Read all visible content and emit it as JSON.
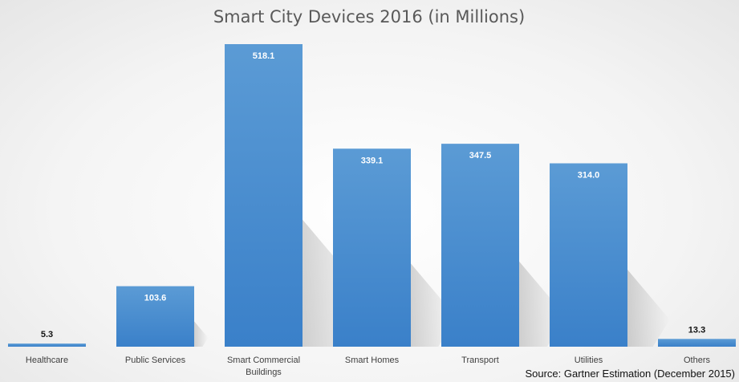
{
  "chart_data": {
    "type": "bar",
    "title": "Smart City Devices 2016 (in Millions)",
    "categories": [
      "Healthcare",
      "Public Services",
      "Smart Commercial Buildings",
      "Smart Homes",
      "Transport",
      "Utilities",
      "Others"
    ],
    "category_lines": [
      [
        "Healthcare"
      ],
      [
        "Public Services"
      ],
      [
        "Smart Commercial",
        "Buildings"
      ],
      [
        "Smart Homes"
      ],
      [
        "Transport"
      ],
      [
        "Utilities"
      ],
      [
        "Others"
      ]
    ],
    "values": [
      5.3,
      103.6,
      518.1,
      339.1,
      347.5,
      314.0,
      13.3
    ],
    "value_labels": [
      "5.3",
      "103.6",
      "518.1",
      "339.1",
      "347.5",
      "314.0",
      "13.3"
    ],
    "xlabel": "",
    "ylabel": "",
    "ylim": [
      0,
      518.1
    ],
    "grid": false,
    "legend": "none",
    "source": "Source: Gartner Estimation (December 2015)",
    "colors": {
      "bar_top": "#5b9bd5",
      "bar_bottom": "#3a80c9",
      "label_inside": "#ffffff",
      "label_outside": "#111111"
    }
  }
}
